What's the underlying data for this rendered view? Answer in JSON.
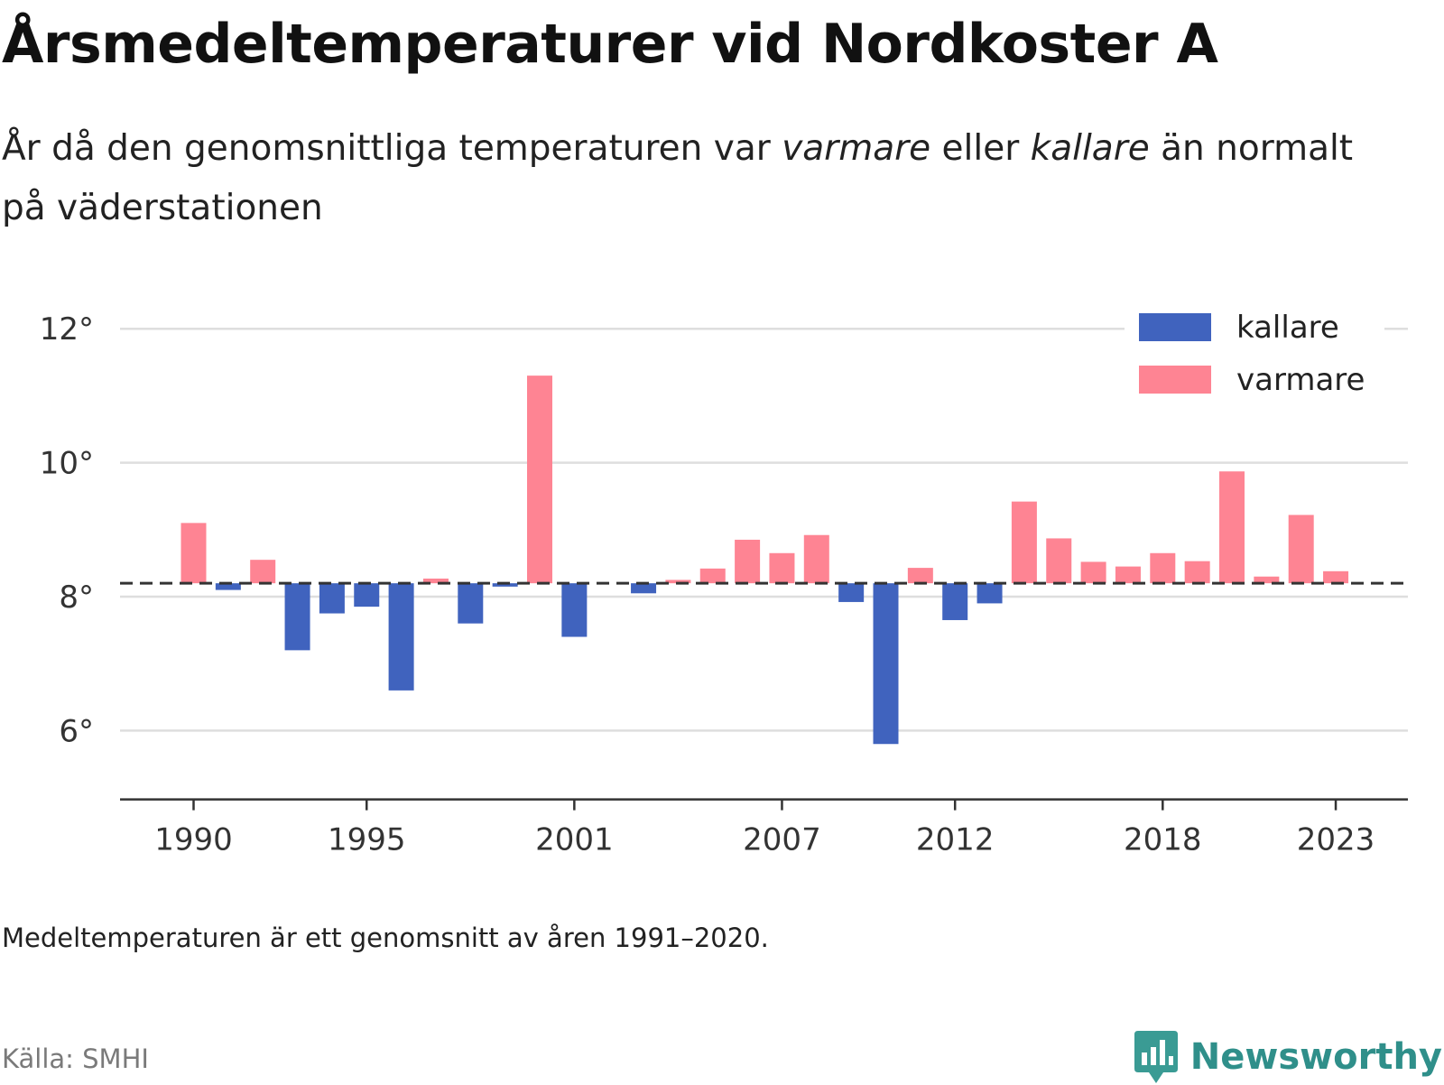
{
  "header": {
    "title": "Årsmedeltemperaturer vid Nordkoster A",
    "subtitle_part1": "År då den genomsnittliga temperaturen var ",
    "subtitle_warm": "varmare",
    "subtitle_part2": " eller ",
    "subtitle_cold": "kallare",
    "subtitle_part3": " än normalt på väderstationen"
  },
  "footer": {
    "note": "Medeltemperaturen är ett genomsnitt av åren 1991–2020.",
    "source": "Källa: SMHI",
    "logo_text": "Newsworthy",
    "logo_icon": "bar-chart-speech-bubble-icon"
  },
  "chart_data": {
    "type": "bar",
    "baseline": 8.2,
    "ylim": [
      5,
      13
    ],
    "yticks": [
      6,
      8,
      10,
      12
    ],
    "ytick_labels": [
      "6°",
      "8°",
      "10°",
      "12°"
    ],
    "xticks": [
      1990,
      1995,
      2001,
      2007,
      2012,
      2018,
      2023
    ],
    "xtick_labels": [
      "1990",
      "1995",
      "2001",
      "2007",
      "2012",
      "2018",
      "2023"
    ],
    "grid": true,
    "legend_position": "top-right",
    "legend": [
      {
        "label": "kallare",
        "color": "#4063be"
      },
      {
        "label": "varmare",
        "color": "#fe8493"
      }
    ],
    "colors": {
      "colder": "#4063be",
      "warmer": "#fe8493"
    },
    "x": [
      1990,
      1991,
      1992,
      1993,
      1994,
      1995,
      1996,
      1997,
      1998,
      1999,
      2000,
      2001,
      2002,
      2003,
      2004,
      2005,
      2006,
      2007,
      2008,
      2009,
      2010,
      2011,
      2012,
      2013,
      2014,
      2015,
      2016,
      2017,
      2018,
      2019,
      2020,
      2021,
      2022,
      2023
    ],
    "values": [
      9.1,
      8.1,
      8.55,
      7.2,
      7.75,
      7.85,
      6.6,
      8.27,
      7.6,
      8.15,
      11.3,
      7.4,
      null,
      8.05,
      8.25,
      8.42,
      8.85,
      8.65,
      8.92,
      7.92,
      5.8,
      8.43,
      7.65,
      7.9,
      9.42,
      8.87,
      8.52,
      8.45,
      8.65,
      8.53,
      9.87,
      8.3,
      9.22,
      8.38
    ]
  }
}
